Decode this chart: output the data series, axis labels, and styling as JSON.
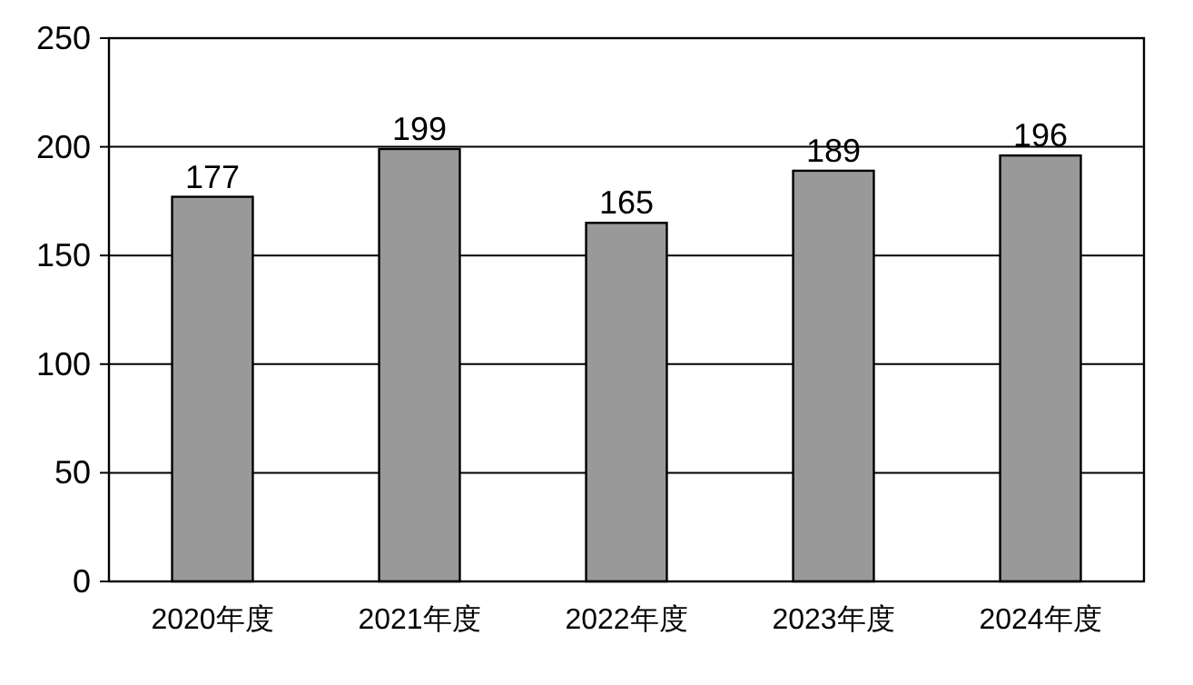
{
  "chart_data": {
    "type": "bar",
    "categories": [
      "2020年度",
      "2021年度",
      "2022年度",
      "2023年度",
      "2024年度"
    ],
    "values": [
      177,
      199,
      165,
      189,
      196
    ],
    "color": "#999999",
    "ylim": [
      0,
      250
    ],
    "yticks": [
      0,
      50,
      100,
      150,
      200,
      250
    ],
    "grid": "y",
    "data_labels": true
  }
}
